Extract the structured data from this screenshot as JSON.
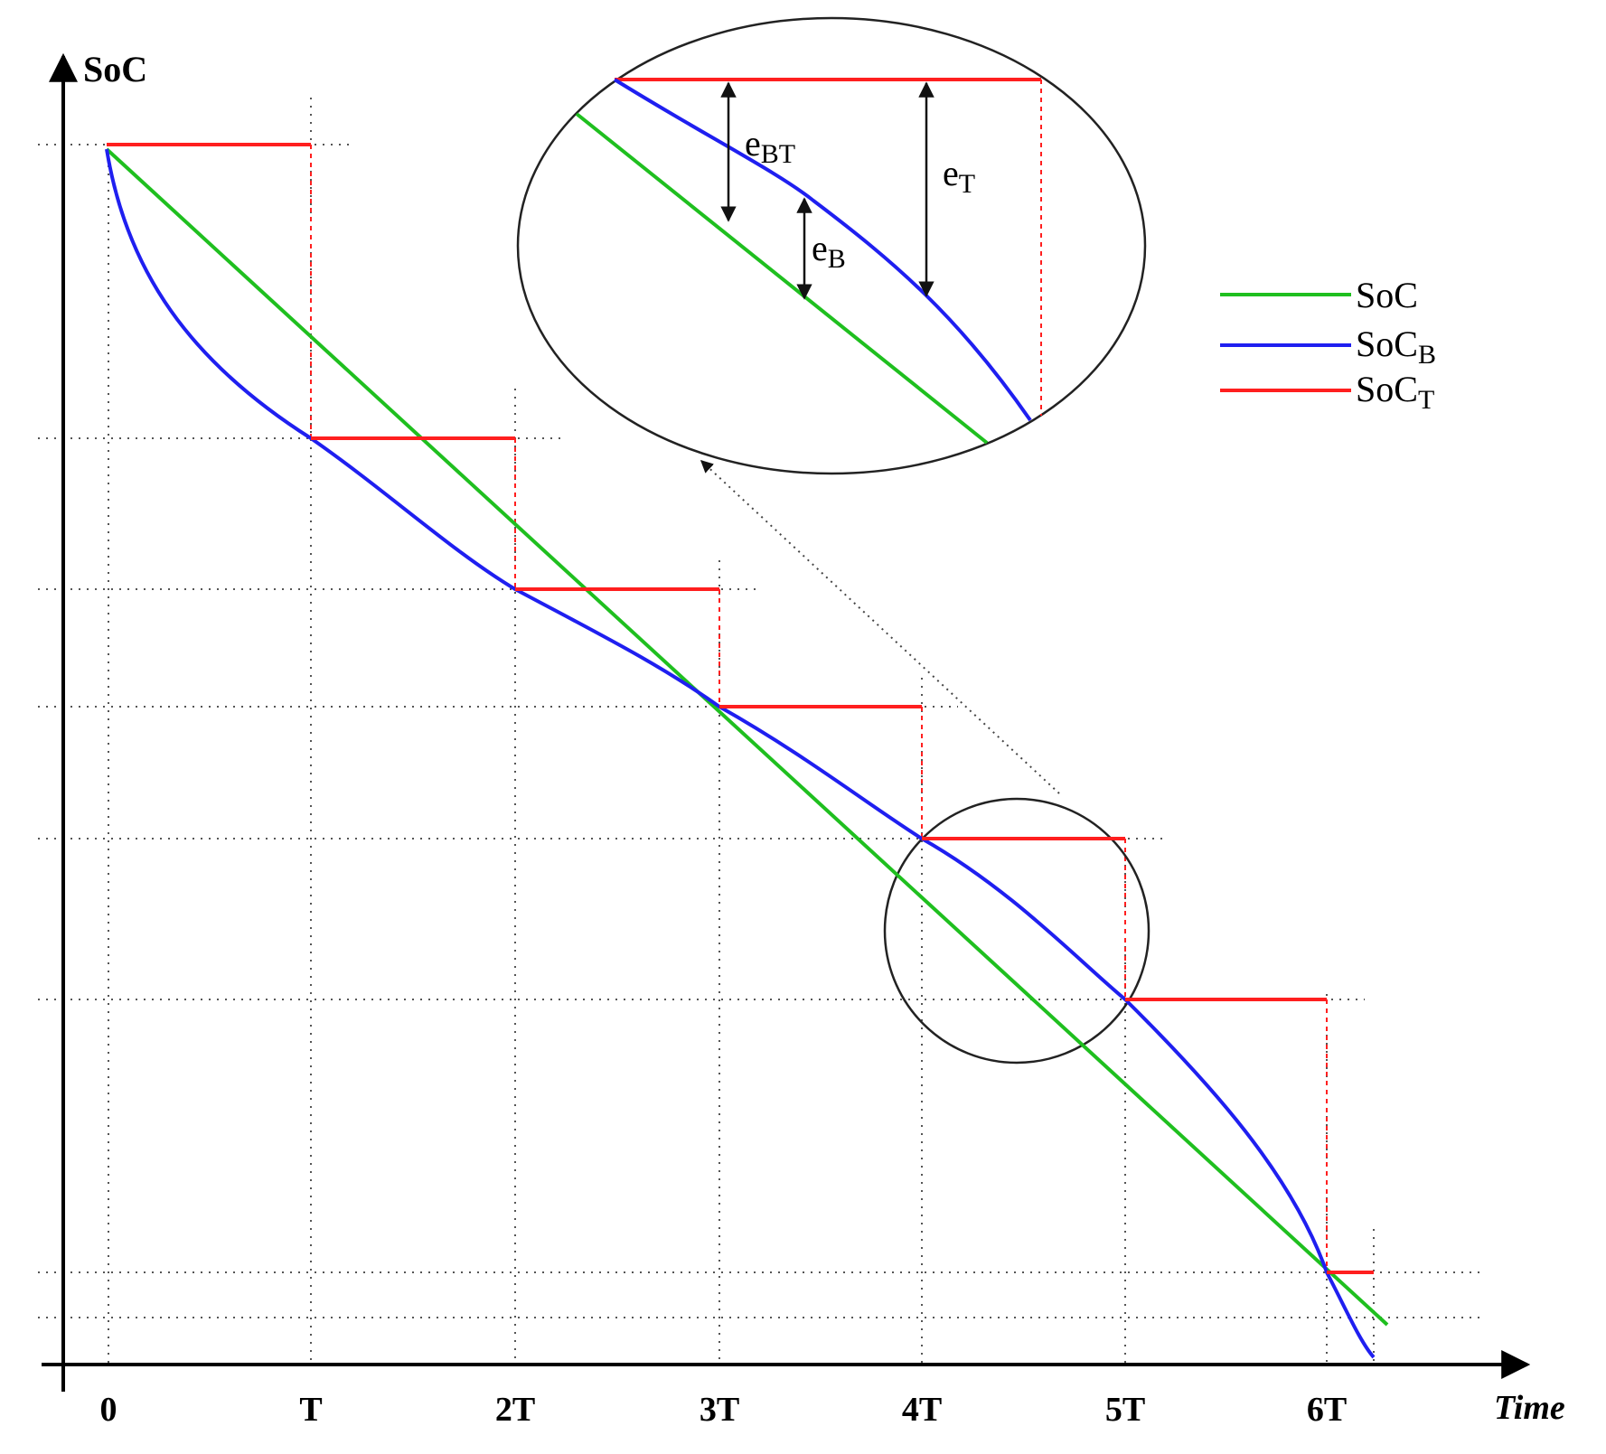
{
  "axes": {
    "y_label": "SoC",
    "x_label": "Time",
    "x_ticks": [
      "0",
      "T",
      "2T",
      "3T",
      "4T",
      "5T",
      "6T"
    ]
  },
  "legend": [
    {
      "base": "SoC",
      "sub": "",
      "color": "#1fbf1f"
    },
    {
      "base": "SoC",
      "sub": "B",
      "color": "#1f1ff0"
    },
    {
      "base": "SoC",
      "sub": "T",
      "color": "#ff1f1f"
    }
  ],
  "inset_labels": {
    "e_bt": {
      "base": "e",
      "sub": "BT"
    },
    "e_t": {
      "base": "e",
      "sub": "T"
    },
    "e_b": {
      "base": "e",
      "sub": "B"
    }
  },
  "colors": {
    "soc": "#1fbf1f",
    "soc_b": "#1f1ff0",
    "soc_t": "#ff1f1f"
  }
}
